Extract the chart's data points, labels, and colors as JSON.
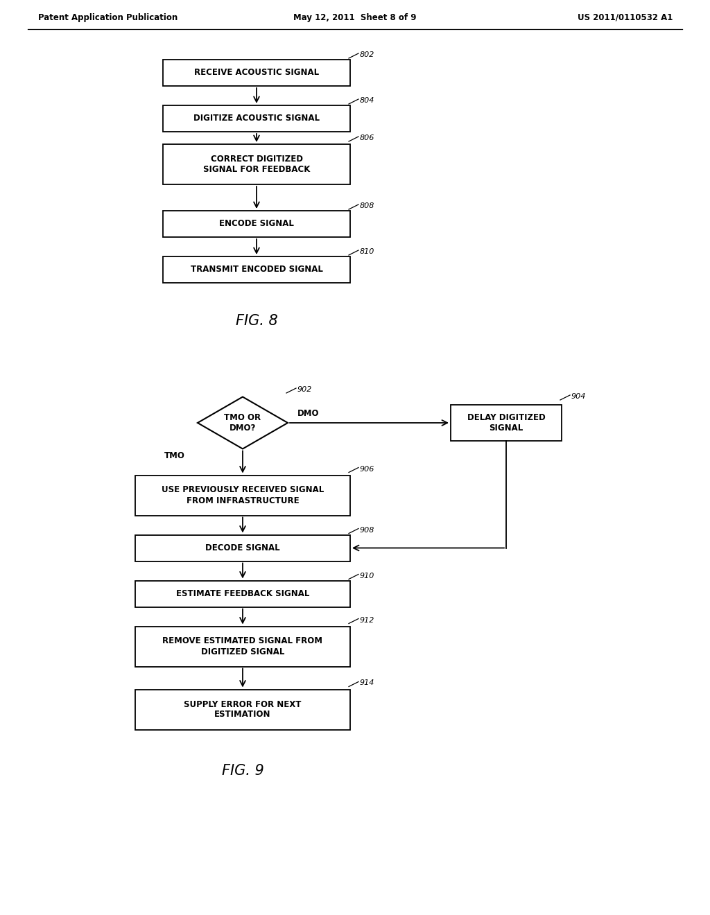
{
  "header_left": "Patent Application Publication",
  "header_center": "May 12, 2011  Sheet 8 of 9",
  "header_right": "US 2011/0110532 A1",
  "fig8_title": "FIG. 8",
  "fig9_title": "FIG. 9",
  "background_color": "#ffffff"
}
